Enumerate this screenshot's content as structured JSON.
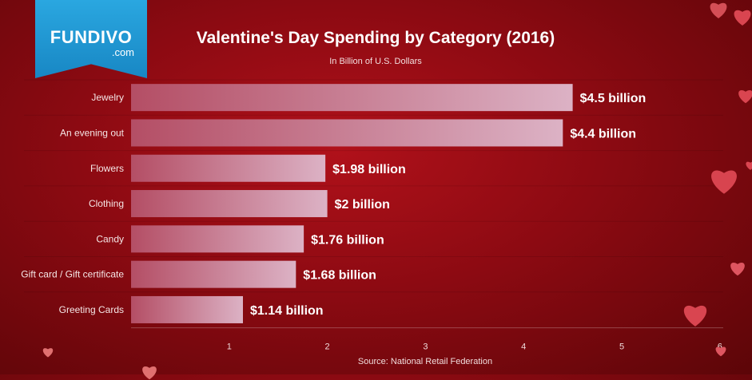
{
  "brand": {
    "name": "FUNDIVO",
    "domain": ".com"
  },
  "chart_data": {
    "type": "bar",
    "orientation": "horizontal",
    "title": "Valentine's Day Spending by Category (2016)",
    "subtitle": "In Billion of U.S. Dollars",
    "source": "Source: National Retail Federation",
    "categories": [
      "Jewelry",
      "An evening out",
      "Flowers",
      "Clothing",
      "Candy",
      "Gift card / Gift certificate",
      "Greeting Cards"
    ],
    "values": [
      4.5,
      4.4,
      1.98,
      2,
      1.76,
      1.68,
      1.14
    ],
    "data_labels": [
      "$4.5 billion",
      "$4.4 billion",
      "$1.98 billion",
      "$2 billion",
      "$1.76 billion",
      "$1.68 billion",
      "$1.14 billion"
    ],
    "xlim": [
      0,
      6
    ],
    "xticks": [
      1,
      2,
      3,
      4,
      5,
      6
    ],
    "xlabel": "",
    "ylabel": "",
    "legend": "none",
    "grid": false
  },
  "colors": {
    "bar_start": "#b44e65",
    "bar_end": "#dcb2c5",
    "text": "#ffffff",
    "tick_text": "#f0dcdc",
    "logo": "#1f95d3"
  }
}
